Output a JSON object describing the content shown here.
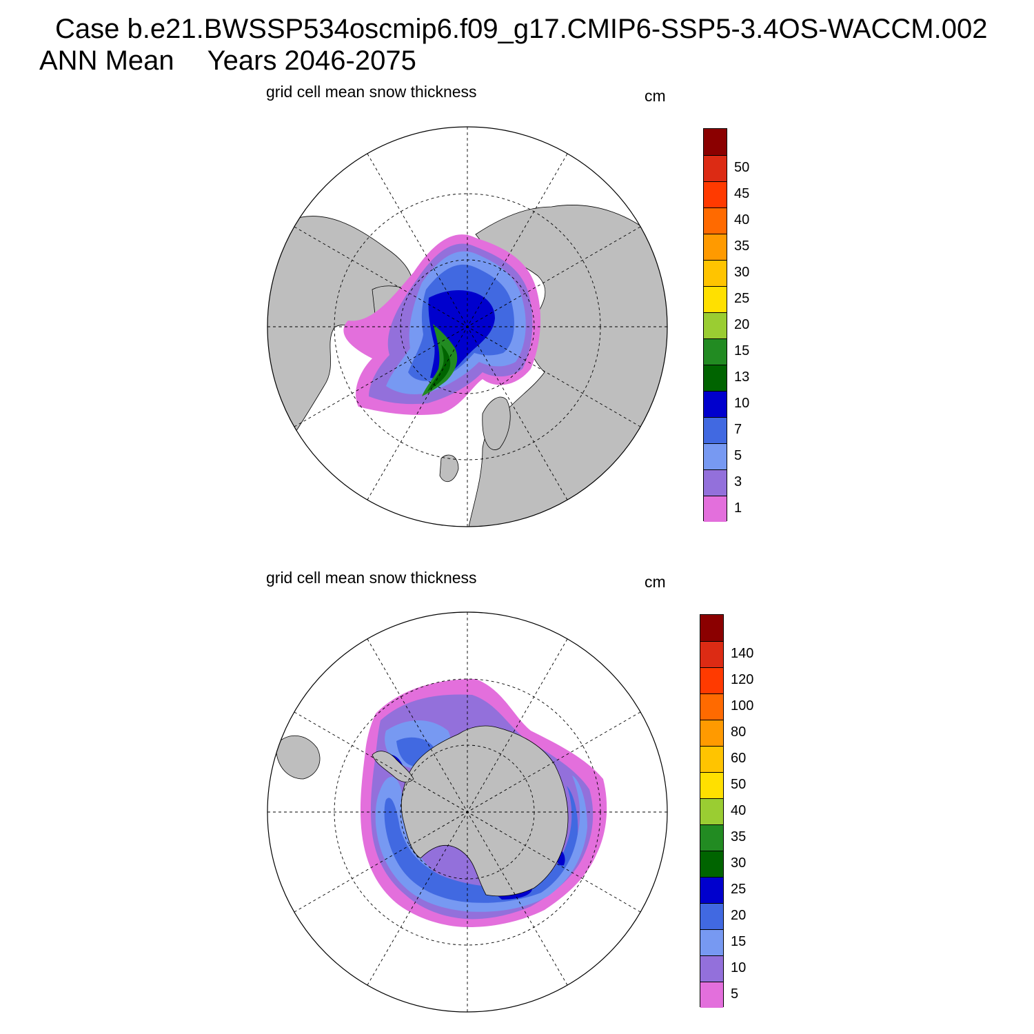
{
  "header": {
    "line1": "Case b.e21.BWSSP534oscmip6.f09_g17.CMIP6-SSP5-3.4OS-WACCM.002",
    "line2_period": "ANN Mean",
    "line2_years": "Years 2046-2075"
  },
  "colors": {
    "land": "#bebebe",
    "ocean": "#ffffff",
    "scale": [
      "#e36fdc",
      "#9370db",
      "#7799f2",
      "#4169e1",
      "#0000cd",
      "#006400",
      "#228b22",
      "#9acd32",
      "#ffe000",
      "#ffc400",
      "#ff9a00",
      "#ff6a00",
      "#ff3a00",
      "#dc2b14",
      "#8b0000"
    ]
  },
  "panels": {
    "north": {
      "title": "grid cell mean snow thickness",
      "units": "cm",
      "hemisphere": "Arctic (north polar stereographic)",
      "levels": [
        "1",
        "3",
        "5",
        "7",
        "10",
        "13",
        "15",
        "20",
        "25",
        "30",
        "35",
        "40",
        "45",
        "50"
      ]
    },
    "south": {
      "title": "grid cell mean snow thickness",
      "units": "cm",
      "hemisphere": "Antarctic (south polar stereographic)",
      "levels": [
        "5",
        "10",
        "15",
        "20",
        "25",
        "30",
        "35",
        "40",
        "50",
        "60",
        "80",
        "100",
        "120",
        "140"
      ]
    }
  }
}
